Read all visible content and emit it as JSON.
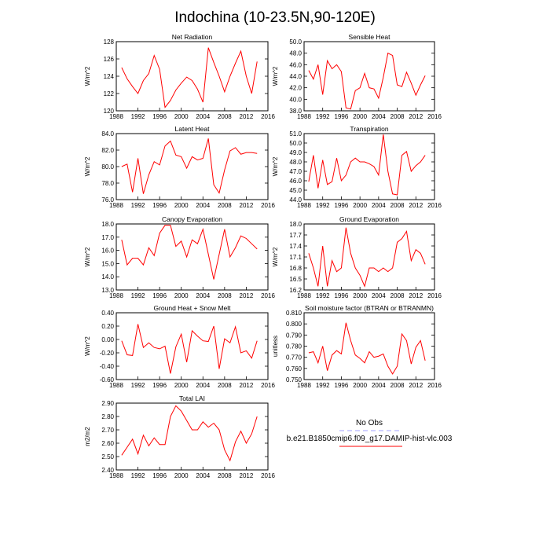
{
  "title": "Indochina (10-23.5N,90-120E)",
  "legend": [
    {
      "name": "No Obs",
      "color": "#a0a0ff",
      "dash": true
    },
    {
      "name": "b.e21.B1850cmip6.f09_g17.DAMIP-hist-vlc.003",
      "color": "#ff0000"
    }
  ],
  "chart_data": [
    {
      "type": "line",
      "title": "Net Radiation",
      "ylabel": "W/m^2",
      "color": "#ff0000",
      "x": [
        1989,
        1990,
        1991,
        1992,
        1993,
        1994,
        1995,
        1996,
        1997,
        1998,
        1999,
        2000,
        2001,
        2002,
        2003,
        2004,
        2005,
        2006,
        2007,
        2008,
        2009,
        2010,
        2011,
        2012,
        2013,
        2014
      ],
      "values": [
        125.0,
        123.7,
        122.8,
        122.0,
        123.5,
        124.3,
        126.4,
        124.8,
        120.4,
        121.2,
        122.4,
        123.2,
        123.9,
        123.5,
        122.5,
        121.0,
        127.3,
        125.6,
        124.0,
        122.2,
        124.0,
        125.5,
        126.9,
        124.0,
        122.0,
        125.7
      ],
      "xlim": [
        1988,
        2016
      ],
      "xticks": [
        1988,
        1992,
        1996,
        2000,
        2004,
        2008,
        2012,
        2016
      ],
      "ylim": [
        120,
        128
      ],
      "yticks": [
        120,
        122,
        124,
        126,
        128
      ]
    },
    {
      "type": "line",
      "title": "Sensible Heat",
      "ylabel": "W/m^2",
      "color": "#ff0000",
      "x": [
        1989,
        1990,
        1991,
        1992,
        1993,
        1994,
        1995,
        1996,
        1997,
        1998,
        1999,
        2000,
        2001,
        2002,
        2003,
        2004,
        2005,
        2006,
        2007,
        2008,
        2009,
        2010,
        2011,
        2012,
        2013,
        2014
      ],
      "values": [
        45.0,
        43.5,
        46.0,
        40.8,
        46.7,
        45.3,
        46.0,
        44.8,
        38.5,
        38.3,
        41.5,
        42.0,
        44.5,
        42.0,
        41.8,
        40.2,
        43.8,
        48.0,
        47.6,
        42.5,
        42.2,
        44.7,
        42.8,
        40.7,
        42.5,
        44.1
      ],
      "xlim": [
        1988,
        2016
      ],
      "xticks": [
        1988,
        1992,
        1996,
        2000,
        2004,
        2008,
        2012,
        2016
      ],
      "ylim": [
        38,
        50
      ],
      "yticks": [
        {
          "value": 38,
          "label": "38.0"
        },
        {
          "value": 40,
          "label": "40.0"
        },
        {
          "value": 42,
          "label": "42.0"
        },
        {
          "value": 44,
          "label": "44.0"
        },
        {
          "value": 46,
          "label": "46.0"
        },
        {
          "value": 48,
          "label": "48.0"
        },
        {
          "value": 50,
          "label": "50.0"
        }
      ]
    },
    {
      "type": "line",
      "title": "Latent Heat",
      "ylabel": "W/m^2",
      "color": "#ff0000",
      "x": [
        1989,
        1990,
        1991,
        1992,
        1993,
        1994,
        1995,
        1996,
        1997,
        1998,
        1999,
        2000,
        2001,
        2002,
        2003,
        2004,
        2005,
        2006,
        2007,
        2008,
        2009,
        2010,
        2011,
        2012,
        2013,
        2014
      ],
      "values": [
        80.0,
        80.3,
        76.9,
        81.0,
        76.7,
        79.0,
        80.6,
        80.2,
        82.5,
        83.1,
        81.4,
        81.2,
        79.8,
        81.2,
        80.8,
        81.0,
        83.4,
        77.8,
        76.8,
        79.6,
        81.9,
        82.3,
        81.5,
        81.7,
        81.7,
        81.6
      ],
      "xlim": [
        1988,
        2016
      ],
      "xticks": [
        1988,
        1992,
        1996,
        2000,
        2004,
        2008,
        2012,
        2016
      ],
      "ylim": [
        76,
        84
      ],
      "yticks": [
        {
          "value": 76,
          "label": "76.0"
        },
        {
          "value": 78,
          "label": "78.0"
        },
        {
          "value": 80,
          "label": "80.0"
        },
        {
          "value": 82,
          "label": "82.0"
        },
        {
          "value": 84,
          "label": "84.0"
        }
      ]
    },
    {
      "type": "line",
      "title": "Transpiration",
      "ylabel": "W/m^2",
      "color": "#ff0000",
      "x": [
        1989,
        1990,
        1991,
        1992,
        1993,
        1994,
        1995,
        1996,
        1997,
        1998,
        1999,
        2000,
        2001,
        2002,
        2003,
        2004,
        2005,
        2006,
        2007,
        2008,
        2009,
        2010,
        2011,
        2012,
        2013,
        2014
      ],
      "values": [
        45.9,
        48.7,
        45.2,
        48.2,
        45.6,
        45.9,
        48.4,
        46.0,
        46.6,
        48.0,
        48.4,
        48.0,
        48.0,
        47.8,
        47.5,
        46.6,
        50.9,
        47.0,
        44.6,
        44.5,
        48.7,
        49.1,
        47.0,
        47.6,
        48.0,
        48.7
      ],
      "xlim": [
        1988,
        2016
      ],
      "xticks": [
        1988,
        1992,
        1996,
        2000,
        2004,
        2008,
        2012,
        2016
      ],
      "ylim": [
        44,
        51
      ],
      "yticks": [
        {
          "value": 44,
          "label": "44.0"
        },
        {
          "value": 45,
          "label": "45.0"
        },
        {
          "value": 46,
          "label": "46.0"
        },
        {
          "value": 47,
          "label": "47.0"
        },
        {
          "value": 48,
          "label": "48.0"
        },
        {
          "value": 49,
          "label": "49.0"
        },
        {
          "value": 50,
          "label": "50.0"
        },
        {
          "value": 51,
          "label": "51.0"
        }
      ]
    },
    {
      "type": "line",
      "title": "Canopy Evaporation",
      "ylabel": "W/m^2",
      "color": "#ff0000",
      "x": [
        1989,
        1990,
        1991,
        1992,
        1993,
        1994,
        1995,
        1996,
        1997,
        1998,
        1999,
        2000,
        2001,
        2002,
        2003,
        2004,
        2005,
        2006,
        2007,
        2008,
        2009,
        2010,
        2011,
        2012,
        2013,
        2014
      ],
      "values": [
        16.8,
        14.9,
        15.4,
        15.4,
        14.9,
        16.2,
        15.6,
        17.3,
        17.9,
        17.9,
        16.3,
        16.7,
        15.5,
        16.8,
        16.5,
        17.6,
        15.7,
        13.8,
        15.7,
        17.6,
        15.5,
        16.2,
        17.1,
        16.9,
        16.5,
        16.1
      ],
      "xlim": [
        1988,
        2016
      ],
      "xticks": [
        1988,
        1992,
        1996,
        2000,
        2004,
        2008,
        2012,
        2016
      ],
      "ylim": [
        13,
        18
      ],
      "yticks": [
        {
          "value": 13,
          "label": "13.0"
        },
        {
          "value": 14,
          "label": "14.0"
        },
        {
          "value": 15,
          "label": "15.0"
        },
        {
          "value": 16,
          "label": "16.0"
        },
        {
          "value": 17,
          "label": "17.0"
        },
        {
          "value": 18,
          "label": "18.0"
        }
      ]
    },
    {
      "type": "line",
      "title": "Ground Evaporation",
      "ylabel": "W/m^2",
      "color": "#ff0000",
      "x": [
        1989,
        1990,
        1991,
        1992,
        1993,
        1994,
        1995,
        1996,
        1997,
        1998,
        1999,
        2000,
        2001,
        2002,
        2003,
        2004,
        2005,
        2006,
        2007,
        2008,
        2009,
        2010,
        2011,
        2012,
        2013,
        2014
      ],
      "values": [
        17.2,
        16.8,
        16.3,
        17.4,
        16.3,
        17.0,
        16.7,
        16.8,
        17.9,
        17.2,
        16.8,
        16.6,
        16.3,
        16.8,
        16.8,
        16.7,
        16.8,
        16.7,
        16.8,
        17.5,
        17.6,
        17.8,
        17.0,
        17.3,
        17.2,
        16.9
      ],
      "xlim": [
        1988,
        2016
      ],
      "xticks": [
        1988,
        1992,
        1996,
        2000,
        2004,
        2008,
        2012,
        2016
      ],
      "ylim": [
        16.2,
        18.0
      ],
      "yticks": [
        16.2,
        16.5,
        16.8,
        17.1,
        17.4,
        17.7,
        {
          "value": 18,
          "label": "18.0"
        }
      ]
    },
    {
      "type": "line",
      "title": "Ground Heat + Snow Melt",
      "ylabel": "W/m^2",
      "color": "#ff0000",
      "x": [
        1989,
        1990,
        1991,
        1992,
        1993,
        1994,
        1995,
        1996,
        1997,
        1998,
        1999,
        2000,
        2001,
        2002,
        2003,
        2004,
        2005,
        2006,
        2007,
        2008,
        2009,
        2010,
        2011,
        2012,
        2013,
        2014
      ],
      "values": [
        -0.02,
        -0.23,
        -0.24,
        0.23,
        -0.12,
        -0.05,
        -0.12,
        -0.14,
        -0.1,
        -0.51,
        -0.11,
        0.08,
        -0.34,
        0.13,
        0.05,
        -0.02,
        -0.03,
        0.2,
        -0.44,
        0.01,
        -0.05,
        0.19,
        -0.2,
        -0.17,
        -0.28,
        -0.02
      ],
      "xlim": [
        1988,
        2016
      ],
      "xticks": [
        1988,
        1992,
        1996,
        2000,
        2004,
        2008,
        2012,
        2016
      ],
      "ylim": [
        -0.6,
        0.4
      ],
      "yticks": [
        {
          "value": -0.6,
          "label": "-0.60"
        },
        {
          "value": -0.4,
          "label": "-0.40"
        },
        {
          "value": -0.2,
          "label": "-0.20"
        },
        {
          "value": 0,
          "label": "0.00"
        },
        {
          "value": 0.2,
          "label": "0.20"
        },
        {
          "value": 0.4,
          "label": "0.40"
        }
      ]
    },
    {
      "type": "line",
      "title": "Soil moisture factor (BTRAN or BTRANMN)",
      "ylabel": "unitless",
      "color": "#ff0000",
      "x": [
        1989,
        1990,
        1991,
        1992,
        1993,
        1994,
        1995,
        1996,
        1997,
        1998,
        1999,
        2000,
        2001,
        2002,
        2003,
        2004,
        2005,
        2006,
        2007,
        2008,
        2009,
        2010,
        2011,
        2012,
        2013,
        2014
      ],
      "values": [
        0.774,
        0.775,
        0.765,
        0.78,
        0.758,
        0.772,
        0.776,
        0.773,
        0.801,
        0.785,
        0.772,
        0.769,
        0.765,
        0.775,
        0.77,
        0.771,
        0.773,
        0.762,
        0.755,
        0.762,
        0.791,
        0.785,
        0.764,
        0.779,
        0.785,
        0.767
      ],
      "xlim": [
        1988,
        2016
      ],
      "xticks": [
        1988,
        1992,
        1996,
        2000,
        2004,
        2008,
        2012,
        2016
      ],
      "ylim": [
        0.75,
        0.81
      ],
      "yticks": [
        {
          "value": 0.75,
          "label": "0.750"
        },
        {
          "value": 0.76,
          "label": "0.760"
        },
        {
          "value": 0.77,
          "label": "0.770"
        },
        {
          "value": 0.78,
          "label": "0.780"
        },
        {
          "value": 0.79,
          "label": "0.790"
        },
        {
          "value": 0.8,
          "label": "0.800"
        },
        {
          "value": 0.81,
          "label": "0.810"
        }
      ]
    },
    {
      "type": "line",
      "title": "Total LAI",
      "ylabel": "m2/m2",
      "color": "#ff0000",
      "x": [
        1989,
        1990,
        1991,
        1992,
        1993,
        1994,
        1995,
        1996,
        1997,
        1998,
        1999,
        2000,
        2001,
        2002,
        2003,
        2004,
        2005,
        2006,
        2007,
        2008,
        2009,
        2010,
        2011,
        2012,
        2013,
        2014
      ],
      "values": [
        2.51,
        2.57,
        2.63,
        2.52,
        2.66,
        2.58,
        2.64,
        2.59,
        2.59,
        2.8,
        2.88,
        2.84,
        2.77,
        2.7,
        2.7,
        2.76,
        2.72,
        2.75,
        2.7,
        2.55,
        2.47,
        2.61,
        2.69,
        2.6,
        2.67,
        2.8
      ],
      "xlim": [
        1988,
        2016
      ],
      "xticks": [
        1988,
        1992,
        1996,
        2000,
        2004,
        2008,
        2012,
        2016
      ],
      "ylim": [
        2.4,
        2.9
      ],
      "yticks": [
        {
          "value": 2.4,
          "label": "2.40"
        },
        {
          "value": 2.5,
          "label": "2.50"
        },
        {
          "value": 2.6,
          "label": "2.60"
        },
        {
          "value": 2.7,
          "label": "2.70"
        },
        {
          "value": 2.8,
          "label": "2.80"
        },
        {
          "value": 2.9,
          "label": "2.90"
        }
      ]
    }
  ]
}
